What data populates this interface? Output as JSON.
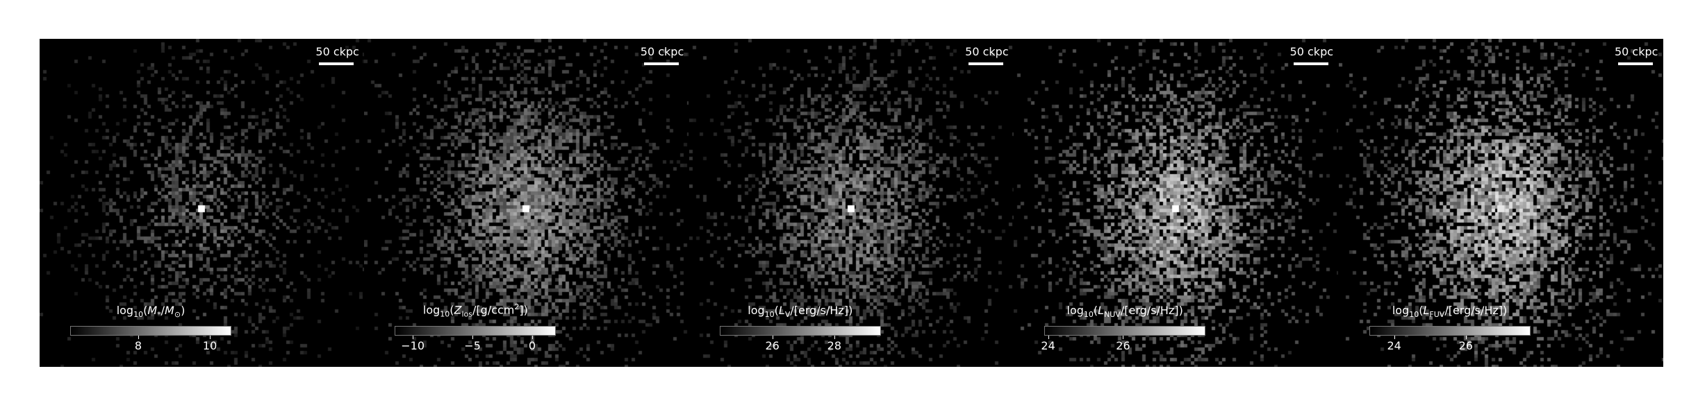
{
  "panels": [
    {
      "scale_label": "50 ckpc",
      "colorbar": {
        "title_html": "log<sub>10</sub>(<i>M</i><sub>*</sub>/<i>M</i><sub>⊙</sub>)",
        "vmin": 6.1,
        "vmax": 10.6,
        "ticks": [
          {
            "value": 8,
            "label": "8"
          },
          {
            "value": 10,
            "label": "10"
          }
        ]
      },
      "image": {
        "brightness": 0.55,
        "fill_density": 0.45,
        "center_peak": 1.0,
        "streak": true
      }
    },
    {
      "scale_label": "50 ckpc",
      "colorbar": {
        "title_html": "log<sub>10</sub>(<i>Z</i><sub>los</sub>/[g/ccm<sup>2</sup>])",
        "vmin": -11.5,
        "vmax": 2.0,
        "ticks": [
          {
            "value": -10,
            "label": "−10"
          },
          {
            "value": -5,
            "label": "−5"
          },
          {
            "value": 0,
            "label": "0"
          }
        ]
      },
      "image": {
        "brightness": 0.75,
        "fill_density": 0.85,
        "center_peak": 1.0,
        "streak": true
      }
    },
    {
      "scale_label": "50 ckpc",
      "colorbar": {
        "title_html": "log<sub>10</sub>(<i>L</i><sub>V</sub>/[erg/s/Hz])",
        "vmin": 24.3,
        "vmax": 29.5,
        "ticks": [
          {
            "value": 26,
            "label": "26"
          },
          {
            "value": 28,
            "label": "28"
          }
        ]
      },
      "image": {
        "brightness": 0.7,
        "fill_density": 0.75,
        "center_peak": 1.0,
        "streak": true
      }
    },
    {
      "scale_label": "50 ckpc",
      "colorbar": {
        "title_html": "log<sub>10</sub>(<i>L</i><sub>NUV</sub>/[erg/s/Hz])",
        "vmin": 23.9,
        "vmax": 28.2,
        "ticks": [
          {
            "value": 24,
            "label": "24"
          },
          {
            "value": 26,
            "label": "26"
          }
        ]
      },
      "image": {
        "brightness": 0.95,
        "fill_density": 0.85,
        "center_peak": 1.0,
        "streak": false
      }
    },
    {
      "scale_label": "50 ckpc",
      "colorbar": {
        "title_html": "log<sub>10</sub>(<i>L</i><sub>FUV</sub>/[erg/s/Hz])",
        "vmin": 23.3,
        "vmax": 27.8,
        "ticks": [
          {
            "value": 24,
            "label": "24"
          },
          {
            "value": 26,
            "label": "26"
          }
        ]
      },
      "image": {
        "brightness": 1.0,
        "fill_density": 0.88,
        "center_peak": 0.9,
        "streak": false
      }
    }
  ]
}
